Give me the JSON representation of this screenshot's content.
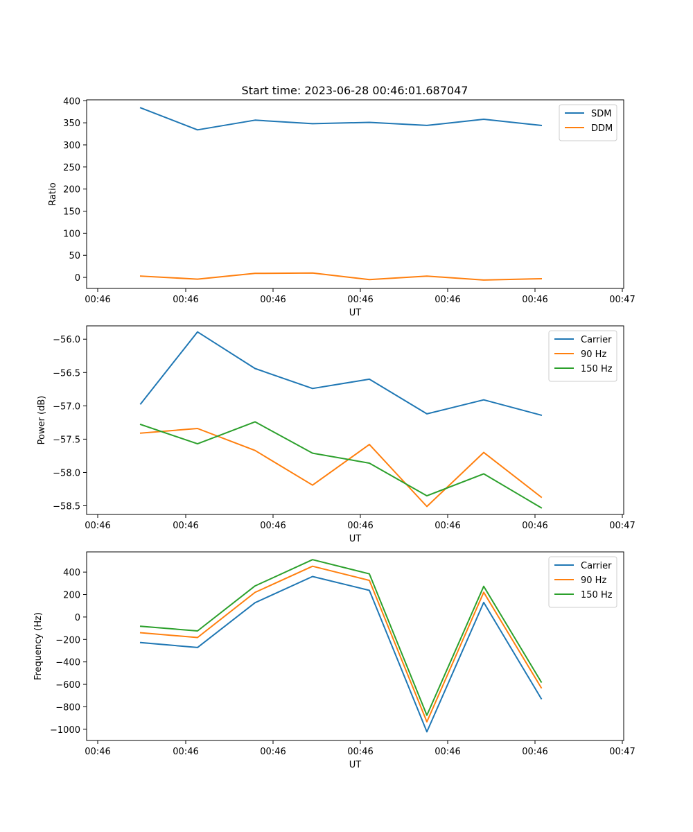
{
  "figure": {
    "title": "Start time: 2023-06-28 00:46:01.687047"
  },
  "colors": {
    "blue": "#1f77b4",
    "orange": "#ff7f0e",
    "green": "#2ca02c"
  },
  "chart_data": [
    {
      "type": "line",
      "title": "Start time: 2023-06-28 00:46:01.687047",
      "xlabel": "UT",
      "ylabel": "Ratio",
      "x_tick_labels": [
        "00:46",
        "00:46",
        "00:46",
        "00:46",
        "00:46",
        "00:46",
        "00:46",
        "00:47"
      ],
      "ylim": [
        -25,
        402
      ],
      "y_ticks": [
        0,
        50,
        100,
        150,
        200,
        250,
        300,
        350,
        400
      ],
      "y_tick_labels": [
        "0",
        "50",
        "100",
        "150",
        "200",
        "250",
        "300",
        "350",
        "400"
      ],
      "legend_position": "top-right",
      "series": [
        {
          "name": "SDM",
          "color": "#1f77b4",
          "values": [
            384,
            334,
            356,
            348,
            351,
            344,
            358,
            344
          ]
        },
        {
          "name": "DDM",
          "color": "#ff7f0e",
          "values": [
            3,
            -4,
            9,
            10,
            -5,
            3,
            -6,
            -3
          ]
        }
      ]
    },
    {
      "type": "line",
      "xlabel": "UT",
      "ylabel": "Power (dB)",
      "x_tick_labels": [
        "00:46",
        "00:46",
        "00:46",
        "00:46",
        "00:46",
        "00:46",
        "00:46",
        "00:47"
      ],
      "ylim": [
        -58.63,
        -55.8
      ],
      "y_ticks": [
        -56.0,
        -56.5,
        -57.0,
        -57.5,
        -58.0,
        -58.5
      ],
      "y_tick_labels": [
        "−56.0",
        "−56.5",
        "−57.0",
        "−57.5",
        "−58.0",
        "−58.5"
      ],
      "legend_position": "top-right",
      "series": [
        {
          "name": "Carrier",
          "color": "#1f77b4",
          "values": [
            -56.97,
            -55.89,
            -56.44,
            -56.74,
            -56.6,
            -57.12,
            -56.91,
            -57.14
          ]
        },
        {
          "name": "90 Hz",
          "color": "#ff7f0e",
          "values": [
            -57.41,
            -57.34,
            -57.67,
            -58.19,
            -57.58,
            -58.51,
            -57.7,
            -58.37
          ]
        },
        {
          "name": "150 Hz",
          "color": "#2ca02c",
          "values": [
            -57.28,
            -57.57,
            -57.24,
            -57.71,
            -57.86,
            -58.35,
            -58.02,
            -58.53
          ]
        }
      ]
    },
    {
      "type": "line",
      "xlabel": "UT",
      "ylabel": "Frequency (Hz)",
      "x_tick_labels": [
        "00:46",
        "00:46",
        "00:46",
        "00:46",
        "00:46",
        "00:46",
        "00:46",
        "00:47"
      ],
      "ylim": [
        -1100,
        580
      ],
      "y_ticks": [
        -1000,
        -800,
        -600,
        -400,
        -200,
        0,
        200,
        400
      ],
      "y_tick_labels": [
        "−1000",
        "−800",
        "−600",
        "−400",
        "−200",
        "0",
        "200",
        "400"
      ],
      "legend_position": "top-right",
      "series": [
        {
          "name": "Carrier",
          "color": "#1f77b4",
          "values": [
            -228,
            -272,
            127,
            361,
            237,
            -1023,
            130,
            -727
          ]
        },
        {
          "name": "90 Hz",
          "color": "#ff7f0e",
          "values": [
            -140,
            -183,
            219,
            452,
            326,
            -934,
            220,
            -630
          ]
        },
        {
          "name": "150 Hz",
          "color": "#2ca02c",
          "values": [
            -83,
            -124,
            277,
            511,
            384,
            -875,
            273,
            -579
          ]
        }
      ]
    }
  ]
}
